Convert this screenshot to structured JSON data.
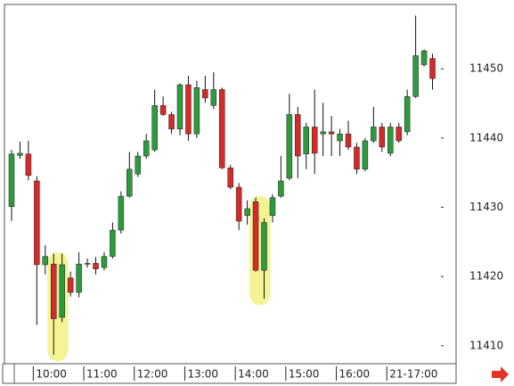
{
  "chart_data": {
    "type": "candlestick",
    "categories": [
      null,
      null,
      null,
      "10:00",
      null,
      null,
      null,
      null,
      null,
      "11:00",
      null,
      null,
      null,
      null,
      null,
      "12:00",
      null,
      null,
      null,
      null,
      null,
      "13:00",
      null,
      null,
      null,
      null,
      null,
      "14:00",
      null,
      null,
      null,
      null,
      null,
      "15:00",
      null,
      null,
      null,
      null,
      null,
      "16:00",
      null,
      null,
      null,
      null,
      null,
      "21-17:00",
      null,
      null,
      null,
      null,
      null
    ],
    "open": [
      11430.1,
      11437.5,
      11437.7,
      11433.8,
      11421.7,
      11421.8,
      11414.1,
      11419.8,
      11417.7,
      11421.8,
      11421.9,
      11421.3,
      11422.9,
      11426.7,
      11431.6,
      11434.8,
      11437.4,
      11438.3,
      11444.7,
      11443.4,
      11441.3,
      11447.7,
      11440.6,
      11447.0,
      11444.7,
      11447.0,
      11435.7,
      11432.9,
      11428.8,
      11430.8,
      11420.9,
      11428.8,
      11431.6,
      11434.2,
      11443.4,
      11437.7,
      11441.6,
      11440.6,
      11440.9,
      11439.6,
      11440.6,
      11438.7,
      11435.5,
      11439.6,
      11441.6,
      11437.8,
      11441.6,
      11440.9,
      11446.0,
      11450.6,
      11451.5
    ],
    "high": [
      11438.3,
      11439.5,
      11439.6,
      11434.5,
      11424.5,
      11423.3,
      11423.3,
      11420.7,
      11423.5,
      11422.6,
      11422.8,
      11423.5,
      11427.8,
      11432.3,
      11438.0,
      11438.0,
      11440.6,
      11447.0,
      11446.0,
      11443.8,
      11447.9,
      11449.0,
      11448.3,
      11449.0,
      11449.5,
      11447.3,
      11436.1,
      11433.5,
      11431.0,
      11431.4,
      11428.4,
      11431.9,
      11437.4,
      11446.4,
      11444.5,
      11442.2,
      11447.0,
      11445.1,
      11443.2,
      11441.3,
      11442.5,
      11439.3,
      11440.0,
      11444.5,
      11442.2,
      11442.2,
      11442.2,
      11447.0,
      11457.7,
      11452.8,
      11452.2
    ],
    "low": [
      11428.0,
      11437.0,
      11433.9,
      11413.0,
      11420.3,
      11408.7,
      11413.4,
      11417.1,
      11417.0,
      11421.3,
      11420.3,
      11420.9,
      11422.6,
      11426.2,
      11431.4,
      11434.4,
      11437.0,
      11438.0,
      11443.2,
      11440.6,
      11440.4,
      11439.6,
      11440.0,
      11445.1,
      11444.2,
      11435.5,
      11432.6,
      11426.7,
      11427.5,
      11420.7,
      11416.8,
      11427.8,
      11431.4,
      11433.9,
      11434.2,
      11435.5,
      11434.8,
      11437.4,
      11437.4,
      11437.4,
      11438.3,
      11434.8,
      11435.2,
      11439.3,
      11438.0,
      11437.4,
      11439.3,
      11440.4,
      11445.8,
      11450.3,
      11447.0
    ],
    "close": [
      11437.7,
      11437.8,
      11434.6,
      11421.7,
      11422.9,
      11413.9,
      11421.7,
      11417.7,
      11421.8,
      11421.9,
      11421.1,
      11422.9,
      11426.7,
      11431.6,
      11435.5,
      11437.4,
      11439.6,
      11444.7,
      11443.4,
      11441.3,
      11447.7,
      11440.6,
      11447.3,
      11445.8,
      11447.0,
      11435.7,
      11432.9,
      11428.0,
      11429.8,
      11420.9,
      11427.8,
      11431.4,
      11433.8,
      11443.4,
      11437.4,
      11441.6,
      11437.8,
      11440.9,
      11440.6,
      11440.6,
      11438.7,
      11435.5,
      11439.6,
      11441.6,
      11438.7,
      11441.6,
      11439.6,
      11446.0,
      11451.9,
      11452.6,
      11448.6
    ],
    "up_color": "#2e9a3e",
    "down_color": "#d42a2a",
    "ylim": [
      11407.4,
      11459.3
    ],
    "yticks": [
      11410,
      11420,
      11430,
      11440,
      11450
    ],
    "y_axis_side": "right"
  }
}
